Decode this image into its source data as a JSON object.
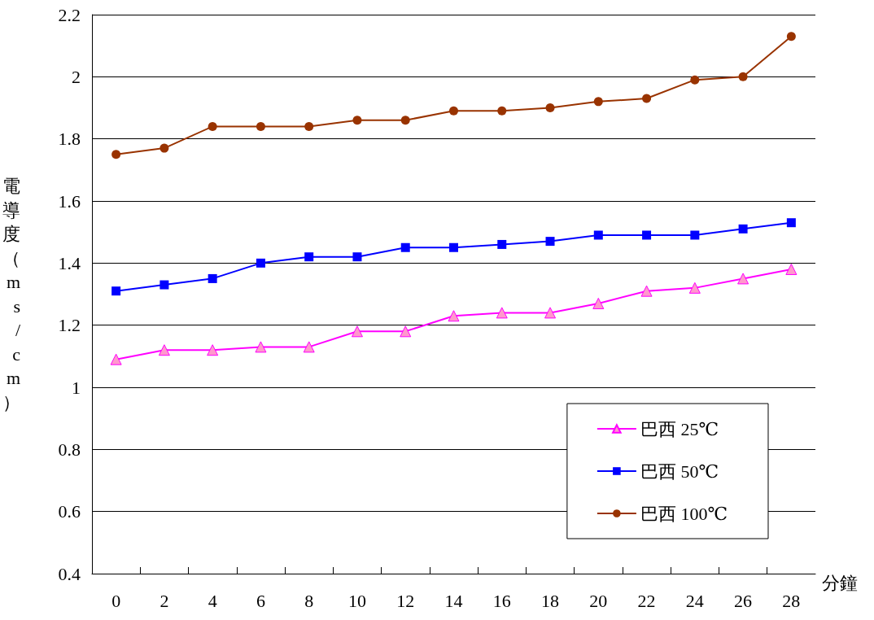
{
  "chart_data": {
    "type": "line",
    "xlabel": "分鐘",
    "ylabel": "電導度（ms/cm）",
    "x": [
      0,
      2,
      4,
      6,
      8,
      10,
      12,
      14,
      16,
      18,
      20,
      22,
      24,
      26,
      28
    ],
    "xlim": [
      -1,
      29
    ],
    "xticks": [
      0,
      {
        "value": 1,
        "label": null
      },
      2,
      {
        "value": 3,
        "label": null
      },
      4,
      {
        "value": 5,
        "label": null
      },
      6,
      {
        "value": 7,
        "label": null
      },
      8,
      {
        "value": 9,
        "label": null
      },
      10,
      {
        "value": 11,
        "label": null
      },
      12,
      {
        "value": 13,
        "label": null
      },
      14,
      {
        "value": 15,
        "label": null
      },
      16,
      {
        "value": 17,
        "label": null
      },
      18,
      {
        "value": 19,
        "label": null
      },
      20,
      {
        "value": 21,
        "label": null
      },
      22,
      {
        "value": 23,
        "label": null
      },
      24,
      {
        "value": 25,
        "label": null
      },
      26,
      {
        "value": 27,
        "label": null
      },
      28
    ],
    "series": [
      {
        "name": "巴西 25℃",
        "color": "#ff00ff",
        "marker": "triangle",
        "values": [
          1.09,
          1.12,
          1.12,
          1.13,
          1.13,
          1.18,
          1.18,
          1.23,
          1.24,
          1.24,
          1.27,
          1.31,
          1.32,
          1.35,
          1.38
        ]
      },
      {
        "name": "巴西 50℃",
        "color": "#0000ff",
        "marker": "square",
        "values": [
          1.31,
          1.33,
          1.35,
          1.4,
          1.42,
          1.42,
          1.45,
          1.45,
          1.46,
          1.47,
          1.49,
          1.49,
          1.49,
          1.51,
          1.53
        ]
      },
      {
        "name": "巴西 100℃",
        "color": "#993300",
        "marker": "circle",
        "values": [
          1.75,
          1.77,
          1.84,
          1.84,
          1.84,
          1.86,
          1.86,
          1.89,
          1.89,
          1.9,
          1.92,
          1.93,
          1.99,
          2.0,
          2.13
        ]
      }
    ],
    "ylim": [
      0.4,
      2.2
    ],
    "yticks": [
      0.4,
      0.6,
      0.8,
      1,
      1.2,
      1.4,
      1.6,
      1.8,
      2,
      2.2
    ],
    "grid": "y",
    "legend": "bottom right",
    "line_style": "solid"
  }
}
